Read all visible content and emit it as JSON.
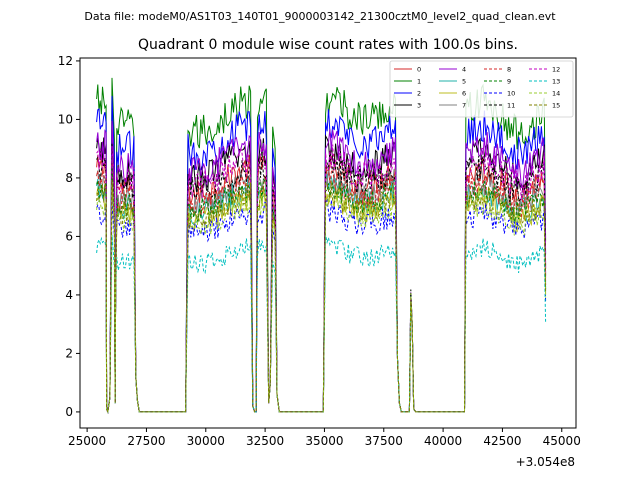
{
  "figure": {
    "suptitle": "Data file: modeM0/AS1T03_140T01_9000003142_21300cztM0_level2_quad_clean.evt"
  },
  "chart_data": {
    "type": "line",
    "title": "Quadrant 0 module wise count rates with 100.0s bins.",
    "xlabel": "",
    "ylabel": "",
    "x_offset_label": "+3.054e8",
    "xlim": [
      24700,
      45600
    ],
    "ylim": [
      -0.55,
      12.1
    ],
    "x_ticks": [
      {
        "value": 25000,
        "label": "25000"
      },
      {
        "value": 27500,
        "label": "27500"
      },
      {
        "value": 30000,
        "label": "30000"
      },
      {
        "value": 32500,
        "label": "32500"
      },
      {
        "value": 35000,
        "label": "35000"
      },
      {
        "value": 37500,
        "label": "37500"
      },
      {
        "value": 40000,
        "label": "40000"
      },
      {
        "value": 42500,
        "label": "42500"
      },
      {
        "value": 45000,
        "label": "45000"
      }
    ],
    "y_ticks": [
      {
        "value": 0,
        "label": "0"
      },
      {
        "value": 2,
        "label": "2"
      },
      {
        "value": 4,
        "label": "4"
      },
      {
        "value": 6,
        "label": "6"
      },
      {
        "value": 8,
        "label": "8"
      },
      {
        "value": 10,
        "label": "10"
      },
      {
        "value": 12,
        "label": "12"
      }
    ],
    "legend": {
      "position": "top-right",
      "columns": 4
    },
    "segments": [
      {
        "start": 25400,
        "end": 25800,
        "drop_end": 25850
      },
      {
        "start": 26050,
        "end": 26050,
        "rise_start": 25900
      },
      {
        "start": 26250,
        "end": 27000
      },
      {
        "start": 29200,
        "end": 31900
      },
      {
        "start": 32200,
        "end": 32600
      },
      {
        "start": 33000,
        "end": 33000
      },
      {
        "start": 35000,
        "end": 38000
      },
      {
        "start": 38650,
        "end": 38700
      },
      {
        "start": 41000,
        "end": 44300
      }
    ],
    "dips": [
      {
        "from": 25850,
        "to": 25950,
        "value": 0
      },
      {
        "from": 27100,
        "to": 29200,
        "value": 0
      },
      {
        "from": 32000,
        "to": 32150,
        "value": 0
      },
      {
        "from": 33100,
        "to": 35000,
        "value": 0
      },
      {
        "from": 38200,
        "to": 38600,
        "value": 0
      },
      {
        "from": 38800,
        "to": 40900,
        "value": 0
      }
    ],
    "series": [
      {
        "name": "0",
        "color": "#d62728",
        "style": "solid",
        "mean": 8.3
      },
      {
        "name": "1",
        "color": "#008000",
        "style": "solid",
        "mean": 10.6
      },
      {
        "name": "2",
        "color": "#0000ff",
        "style": "solid",
        "mean": 9.8
      },
      {
        "name": "3",
        "color": "#000000",
        "style": "solid",
        "mean": 8.9
      },
      {
        "name": "4",
        "color": "#9400d3",
        "style": "solid",
        "mean": 9.1
      },
      {
        "name": "5",
        "color": "#20b2aa",
        "style": "solid",
        "mean": 7.6
      },
      {
        "name": "6",
        "color": "#bcbd22",
        "style": "solid",
        "mean": 7.3
      },
      {
        "name": "7",
        "color": "#808080",
        "style": "solid",
        "mean": 7.9
      },
      {
        "name": "8",
        "color": "#d62728",
        "style": "dashed",
        "mean": 7.9
      },
      {
        "name": "9",
        "color": "#008000",
        "style": "dashed",
        "mean": 7.6
      },
      {
        "name": "10",
        "color": "#0000ff",
        "style": "dashed",
        "mean": 6.8
      },
      {
        "name": "11",
        "color": "#000000",
        "style": "dashed",
        "mean": 8.4
      },
      {
        "name": "12",
        "color": "#c000c0",
        "style": "dashed",
        "mean": 8.6
      },
      {
        "name": "13",
        "color": "#00bfbf",
        "style": "dashed",
        "mean": 5.6
      },
      {
        "name": "14",
        "color": "#9acd32",
        "style": "dashed",
        "mean": 7.1
      },
      {
        "name": "15",
        "color": "#808000",
        "style": "dashed",
        "mean": 7.4
      }
    ]
  }
}
